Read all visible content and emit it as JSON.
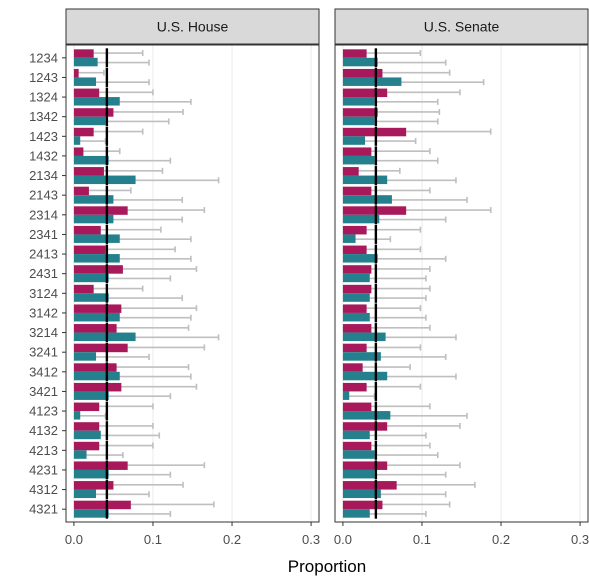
{
  "chart_data": {
    "type": "bar",
    "xlabel": "Proportion",
    "ylabel": "",
    "xlim": [
      -0.01,
      0.31
    ],
    "xticks": [
      0.0,
      0.1,
      0.2,
      0.3
    ],
    "xtick_labels": [
      "0.0",
      "0.1",
      "0.2",
      "0.3"
    ],
    "reference_value": 0.0417,
    "grid": true,
    "legend": "none",
    "categories": [
      "1234",
      "1243",
      "1324",
      "1342",
      "1423",
      "1432",
      "2134",
      "2143",
      "2314",
      "2341",
      "2413",
      "2431",
      "3124",
      "3142",
      "3214",
      "3241",
      "3412",
      "3421",
      "4123",
      "4132",
      "4213",
      "4231",
      "4312",
      "4321"
    ],
    "colors": {
      "magenta": "#A8195C",
      "teal": "#25808D",
      "errorbar": "#BFBFBF",
      "reference": "#000000",
      "strip_fill": "#D9D9D9"
    },
    "panels": [
      {
        "title": "U.S. House",
        "magenta": {
          "values": [
            0.025,
            0.006,
            0.032,
            0.05,
            0.025,
            0.012,
            0.038,
            0.019,
            0.068,
            0.034,
            0.04,
            0.062,
            0.025,
            0.06,
            0.054,
            0.068,
            0.054,
            0.06,
            0.032,
            0.032,
            0.032,
            0.068,
            0.05,
            0.072
          ],
          "upper": [
            0.087,
            0.038,
            0.1,
            0.138,
            0.087,
            0.058,
            0.112,
            0.072,
            0.165,
            0.11,
            0.128,
            0.155,
            0.087,
            0.155,
            0.145,
            0.165,
            0.145,
            0.155,
            0.1,
            0.1,
            0.1,
            0.165,
            0.138,
            0.177
          ]
        },
        "teal": {
          "values": [
            0.03,
            0.028,
            0.058,
            0.04,
            0.008,
            0.044,
            0.078,
            0.05,
            0.05,
            0.058,
            0.058,
            0.044,
            0.044,
            0.058,
            0.078,
            0.028,
            0.058,
            0.044,
            0.008,
            0.034,
            0.016,
            0.044,
            0.028,
            0.044
          ],
          "upper": [
            0.095,
            0.095,
            0.148,
            0.12,
            0.04,
            0.122,
            0.183,
            0.137,
            0.137,
            0.148,
            0.148,
            0.122,
            0.137,
            0.148,
            0.183,
            0.095,
            0.148,
            0.122,
            0.04,
            0.108,
            0.062,
            0.122,
            0.095,
            0.122
          ]
        }
      },
      {
        "title": "U.S. Senate",
        "magenta": {
          "values": [
            0.03,
            0.05,
            0.056,
            0.044,
            0.08,
            0.036,
            0.02,
            0.036,
            0.08,
            0.03,
            0.03,
            0.036,
            0.036,
            0.03,
            0.036,
            0.03,
            0.025,
            0.03,
            0.036,
            0.056,
            0.036,
            0.056,
            0.068,
            0.05
          ],
          "upper": [
            0.098,
            0.135,
            0.148,
            0.122,
            0.187,
            0.11,
            0.072,
            0.11,
            0.187,
            0.098,
            0.098,
            0.11,
            0.11,
            0.098,
            0.11,
            0.098,
            0.085,
            0.098,
            0.11,
            0.148,
            0.11,
            0.148,
            0.167,
            0.135
          ]
        },
        "teal": {
          "values": [
            0.044,
            0.074,
            0.04,
            0.04,
            0.028,
            0.04,
            0.056,
            0.062,
            0.046,
            0.016,
            0.044,
            0.034,
            0.034,
            0.034,
            0.054,
            0.048,
            0.056,
            0.008,
            0.06,
            0.034,
            0.04,
            0.04,
            0.048,
            0.034
          ],
          "upper": [
            0.13,
            0.178,
            0.12,
            0.12,
            0.092,
            0.12,
            0.143,
            0.157,
            0.13,
            0.06,
            0.13,
            0.105,
            0.105,
            0.105,
            0.143,
            0.13,
            0.143,
            0.04,
            0.157,
            0.105,
            0.12,
            0.13,
            0.13,
            0.105
          ]
        }
      }
    ]
  }
}
